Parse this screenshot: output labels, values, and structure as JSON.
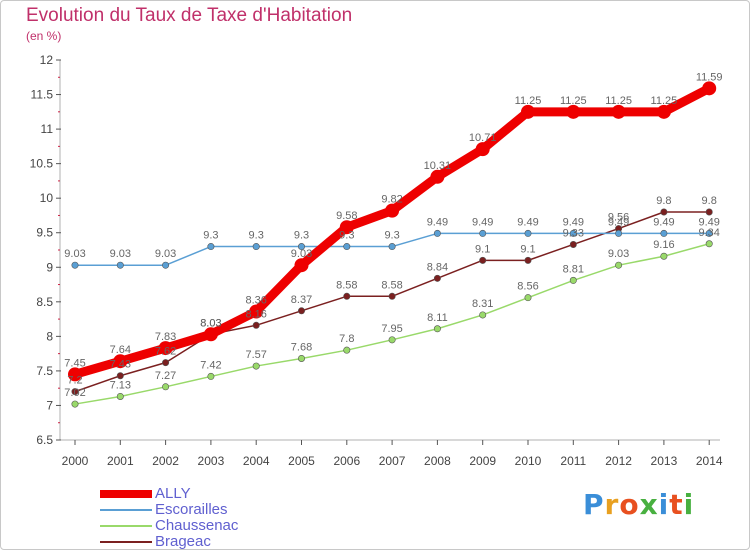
{
  "header": {
    "title": "Evolution du Taux de Taxe d'Habitation",
    "unit": "(en %)"
  },
  "brand": {
    "logo": "Proxiti",
    "colors": [
      "#3a8ed8",
      "#e8a020",
      "#e85020",
      "#48b040",
      "#3a8ed8",
      "#e85020",
      "#48b040"
    ]
  },
  "chart_data": {
    "type": "line",
    "title": "Evolution du Taux de Taxe d'Habitation",
    "ylabel": "(en %)",
    "xlabel": "",
    "x": [
      "2000",
      "2001",
      "2002",
      "2003",
      "2004",
      "2005",
      "2006",
      "2007",
      "2008",
      "2009",
      "2010",
      "2011",
      "2012",
      "2013",
      "2014"
    ],
    "ylim": [
      6.5,
      12
    ],
    "yticks": [
      "6.5",
      "7",
      "7.5",
      "8",
      "8.5",
      "9",
      "9.5",
      "10",
      "10.5",
      "11",
      "11.5",
      "12"
    ],
    "grid": false,
    "legend_position": "bottom-left",
    "series": [
      {
        "name": "ALLY",
        "color": "#ee0000",
        "values": [
          7.45,
          7.64,
          7.83,
          8.03,
          8.36,
          9.03,
          9.58,
          9.82,
          10.31,
          10.71,
          11.25,
          11.25,
          11.25,
          11.25,
          11.59
        ],
        "labels": [
          "7.45",
          "7.64",
          "7.83",
          "8.03",
          "8.36",
          "9.03",
          "9.58",
          "9.82",
          "10.31",
          "10.71",
          "11.25",
          "11.25",
          "11.25",
          "11.25",
          "11.59"
        ]
      },
      {
        "name": "Escorailles",
        "color": "#5a9fd4",
        "values": [
          9.03,
          9.03,
          9.03,
          9.3,
          9.3,
          9.3,
          9.3,
          9.3,
          9.49,
          9.49,
          9.49,
          9.49,
          9.49,
          9.49,
          9.49
        ],
        "labels": [
          "9.03",
          "9.03",
          "9.03",
          "9.3",
          "9.3",
          "9.3",
          "9.3",
          "9.3",
          "9.49",
          "9.49",
          "9.49",
          "9.49",
          "9.49",
          "9.49",
          "9.49"
        ]
      },
      {
        "name": "Chaussenac",
        "color": "#99d96a",
        "values": [
          7.02,
          7.13,
          7.27,
          7.42,
          7.57,
          7.68,
          7.8,
          7.95,
          8.11,
          8.31,
          8.56,
          8.81,
          9.03,
          9.16,
          9.34
        ],
        "labels": [
          "7.02",
          "7.13",
          "7.27",
          "7.42",
          "7.57",
          "7.68",
          "7.8",
          "7.95",
          "8.11",
          "8.31",
          "8.56",
          "8.81",
          "9.03",
          "9.16",
          "9.34"
        ]
      },
      {
        "name": "Brageac",
        "color": "#7b2020",
        "values": [
          7.2,
          7.43,
          7.62,
          8.03,
          8.16,
          8.37,
          8.58,
          8.58,
          8.84,
          9.1,
          9.1,
          9.33,
          9.56,
          9.8,
          9.8
        ],
        "labels": [
          "7.2",
          "7.43",
          "7.62",
          "8.03",
          "8.16",
          "8.37",
          "8.58",
          "8.58",
          "8.84",
          "9.1",
          "9.1",
          "9.33",
          "9.56",
          "9.8",
          "9.8"
        ]
      }
    ]
  }
}
